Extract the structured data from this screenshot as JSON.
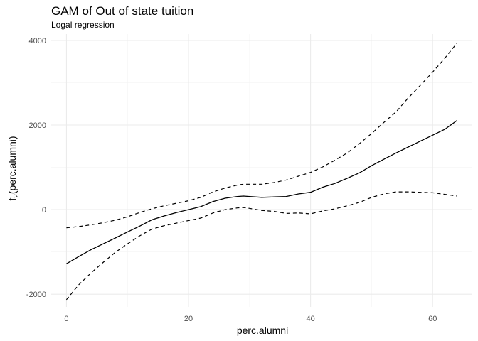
{
  "chart_data": {
    "type": "line",
    "title": "GAM of Out of state tuition",
    "subtitle": "Logal regression",
    "xlabel": "perc.alumni",
    "ylabel_main": "f",
    "ylabel_sub": "2",
    "ylabel_rest": "(perc.alumni)",
    "xlim": [
      -2.5,
      66.5
    ],
    "ylim": [
      -2300,
      4150
    ],
    "x_ticks": [
      0,
      20,
      40,
      60
    ],
    "x_minor": [
      10,
      30,
      50
    ],
    "y_ticks": [
      -2000,
      0,
      2000,
      4000
    ],
    "y_minor": [
      -1000,
      1000,
      3000
    ],
    "x_tick_labels": [
      "0",
      "20",
      "40",
      "60"
    ],
    "y_tick_labels": [
      "-2000",
      "0",
      "2000",
      "4000"
    ],
    "grid": true,
    "legend": "none",
    "series": [
      {
        "role": "fit",
        "style": "solid",
        "x": [
          0,
          2,
          4,
          6,
          8,
          10,
          12,
          14,
          16,
          18,
          20,
          22,
          24,
          26,
          28,
          29,
          30,
          32,
          34,
          36,
          38,
          40,
          42,
          44,
          46,
          48,
          50,
          52,
          54,
          56,
          58,
          60,
          62,
          64
        ],
        "y": [
          -1280,
          -1110,
          -950,
          -810,
          -670,
          -530,
          -390,
          -240,
          -150,
          -70,
          0,
          70,
          190,
          270,
          310,
          320,
          310,
          290,
          300,
          310,
          370,
          410,
          530,
          620,
          740,
          870,
          1040,
          1190,
          1340,
          1480,
          1620,
          1760,
          1900,
          2110
        ]
      },
      {
        "role": "upper-band",
        "style": "dashed",
        "x": [
          0,
          2,
          4,
          6,
          8,
          10,
          12,
          14,
          16,
          18,
          20,
          22,
          24,
          26,
          28,
          29,
          30,
          32,
          34,
          36,
          38,
          40,
          42,
          44,
          46,
          48,
          50,
          52,
          54,
          56,
          58,
          60,
          62,
          64
        ],
        "y": [
          -430,
          -400,
          -360,
          -310,
          -250,
          -170,
          -70,
          20,
          90,
          150,
          210,
          290,
          420,
          510,
          580,
          600,
          600,
          600,
          640,
          700,
          790,
          880,
          1010,
          1170,
          1340,
          1560,
          1800,
          2060,
          2310,
          2640,
          2940,
          3250,
          3580,
          3940
        ]
      },
      {
        "role": "lower-band",
        "style": "dashed",
        "x": [
          0,
          2,
          4,
          6,
          8,
          10,
          12,
          14,
          16,
          18,
          20,
          22,
          24,
          26,
          28,
          29,
          30,
          32,
          34,
          36,
          38,
          40,
          42,
          44,
          46,
          48,
          50,
          52,
          54,
          56,
          58,
          60,
          62,
          64
        ],
        "y": [
          -2130,
          -1780,
          -1500,
          -1250,
          -1010,
          -810,
          -620,
          -460,
          -380,
          -320,
          -260,
          -200,
          -80,
          0,
          40,
          50,
          30,
          -20,
          -40,
          -90,
          -80,
          -100,
          -30,
          20,
          90,
          170,
          290,
          370,
          420,
          420,
          410,
          400,
          360,
          320
        ]
      }
    ]
  }
}
